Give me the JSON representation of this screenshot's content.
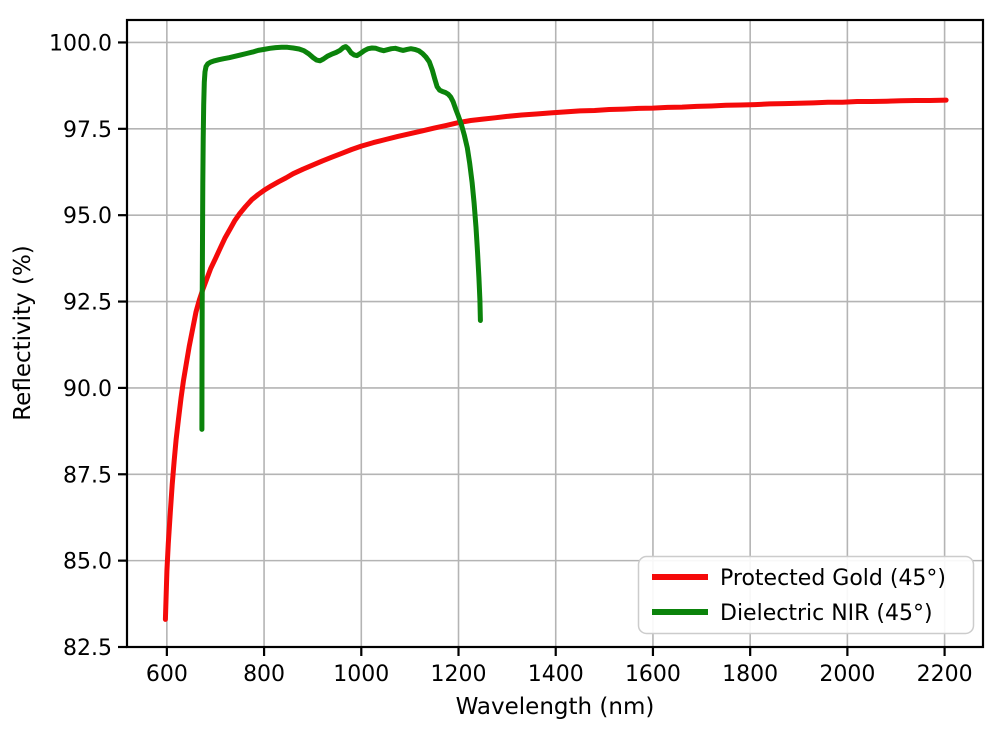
{
  "chart_data": {
    "type": "line",
    "title": "",
    "xlabel": "Wavelength (nm)",
    "ylabel": "Reflectivity (%)",
    "xlim": [
      518,
      2279
    ],
    "ylim": [
      82.5,
      100.65
    ],
    "grid": true,
    "grid_color": "#b4b4b4",
    "background_color": "#ffffff",
    "spine_color": "#000000",
    "x_ticks": [
      600,
      800,
      1000,
      1200,
      1400,
      1600,
      1800,
      2000,
      2200
    ],
    "x_tick_labels": [
      "600",
      "800",
      "1000",
      "1200",
      "1400",
      "1600",
      "1800",
      "2000",
      "2200"
    ],
    "y_ticks": [
      82.5,
      85.0,
      87.5,
      90.0,
      92.5,
      95.0,
      97.5,
      100.0
    ],
    "y_tick_labels": [
      "82.5",
      "85.0",
      "87.5",
      "90.0",
      "92.5",
      "95.0",
      "97.5",
      "100.0"
    ],
    "legend": {
      "location": "lower right",
      "entries": [
        "Protected Gold (45°)",
        "Dielectric NIR (45°)"
      ]
    },
    "series": [
      {
        "name": "Protected Gold (45°)",
        "color": "#f50a0a",
        "linewidth": 5,
        "points": [
          [
            597,
            83.3
          ],
          [
            600,
            84.7
          ],
          [
            603,
            85.5
          ],
          [
            607,
            86.4
          ],
          [
            611,
            87.2
          ],
          [
            615,
            87.9
          ],
          [
            619,
            88.5
          ],
          [
            624,
            89.1
          ],
          [
            629,
            89.7
          ],
          [
            634,
            90.2
          ],
          [
            640,
            90.7
          ],
          [
            646,
            91.2
          ],
          [
            653,
            91.7
          ],
          [
            660,
            92.2
          ],
          [
            667,
            92.55
          ],
          [
            674,
            92.85
          ],
          [
            682,
            93.15
          ],
          [
            690,
            93.45
          ],
          [
            700,
            93.75
          ],
          [
            710,
            94.05
          ],
          [
            720,
            94.35
          ],
          [
            730,
            94.6
          ],
          [
            740,
            94.85
          ],
          [
            750,
            95.05
          ],
          [
            762,
            95.25
          ],
          [
            775,
            95.45
          ],
          [
            788,
            95.6
          ],
          [
            800,
            95.72
          ],
          [
            815,
            95.85
          ],
          [
            830,
            95.97
          ],
          [
            845,
            96.08
          ],
          [
            860,
            96.2
          ],
          [
            880,
            96.33
          ],
          [
            900,
            96.45
          ],
          [
            920,
            96.57
          ],
          [
            940,
            96.68
          ],
          [
            960,
            96.79
          ],
          [
            980,
            96.9
          ],
          [
            1000,
            97.0
          ],
          [
            1025,
            97.1
          ],
          [
            1050,
            97.19
          ],
          [
            1075,
            97.28
          ],
          [
            1100,
            97.36
          ],
          [
            1125,
            97.44
          ],
          [
            1150,
            97.52
          ],
          [
            1175,
            97.6
          ],
          [
            1200,
            97.68
          ],
          [
            1225,
            97.74
          ],
          [
            1250,
            97.78
          ],
          [
            1275,
            97.82
          ],
          [
            1300,
            97.86
          ],
          [
            1330,
            97.9
          ],
          [
            1360,
            97.93
          ],
          [
            1390,
            97.96
          ],
          [
            1420,
            97.99
          ],
          [
            1450,
            98.02
          ],
          [
            1480,
            98.03
          ],
          [
            1510,
            98.06
          ],
          [
            1540,
            98.07
          ],
          [
            1570,
            98.09
          ],
          [
            1600,
            98.1
          ],
          [
            1630,
            98.12
          ],
          [
            1660,
            98.13
          ],
          [
            1690,
            98.15
          ],
          [
            1720,
            98.16
          ],
          [
            1750,
            98.18
          ],
          [
            1780,
            98.19
          ],
          [
            1810,
            98.2
          ],
          [
            1840,
            98.22
          ],
          [
            1870,
            98.23
          ],
          [
            1900,
            98.24
          ],
          [
            1930,
            98.25
          ],
          [
            1960,
            98.27
          ],
          [
            1990,
            98.27
          ],
          [
            2020,
            98.29
          ],
          [
            2050,
            98.29
          ],
          [
            2080,
            98.3
          ],
          [
            2110,
            98.31
          ],
          [
            2140,
            98.32
          ],
          [
            2170,
            98.32
          ],
          [
            2203,
            98.33
          ]
        ]
      },
      {
        "name": "Dielectric NIR (45°)",
        "color": "#0b830b",
        "linewidth": 5,
        "points": [
          [
            672,
            88.8
          ],
          [
            672.3,
            90.5
          ],
          [
            672.8,
            92.5
          ],
          [
            673.3,
            94.3
          ],
          [
            674,
            95.9
          ],
          [
            674.8,
            97.2
          ],
          [
            675.8,
            98.2
          ],
          [
            677,
            98.85
          ],
          [
            678.5,
            99.15
          ],
          [
            680.5,
            99.3
          ],
          [
            684,
            99.38
          ],
          [
            690,
            99.43
          ],
          [
            698,
            99.47
          ],
          [
            707,
            99.5
          ],
          [
            717,
            99.53
          ],
          [
            728,
            99.56
          ],
          [
            740,
            99.6
          ],
          [
            752,
            99.64
          ],
          [
            764,
            99.68
          ],
          [
            776,
            99.72
          ],
          [
            788,
            99.77
          ],
          [
            800,
            99.8
          ],
          [
            812,
            99.83
          ],
          [
            824,
            99.85
          ],
          [
            836,
            99.86
          ],
          [
            848,
            99.86
          ],
          [
            860,
            99.84
          ],
          [
            872,
            99.81
          ],
          [
            882,
            99.76
          ],
          [
            892,
            99.67
          ],
          [
            901,
            99.56
          ],
          [
            908,
            99.49
          ],
          [
            915,
            99.47
          ],
          [
            922,
            99.52
          ],
          [
            930,
            99.6
          ],
          [
            939,
            99.66
          ],
          [
            948,
            99.71
          ],
          [
            956,
            99.77
          ],
          [
            963,
            99.85
          ],
          [
            968,
            99.88
          ],
          [
            973,
            99.82
          ],
          [
            979,
            99.7
          ],
          [
            985,
            99.64
          ],
          [
            991,
            99.62
          ],
          [
            998,
            99.68
          ],
          [
            1006,
            99.76
          ],
          [
            1014,
            99.82
          ],
          [
            1022,
            99.84
          ],
          [
            1030,
            99.83
          ],
          [
            1038,
            99.79
          ],
          [
            1046,
            99.76
          ],
          [
            1054,
            99.79
          ],
          [
            1062,
            99.82
          ],
          [
            1070,
            99.83
          ],
          [
            1078,
            99.8
          ],
          [
            1086,
            99.77
          ],
          [
            1094,
            99.8
          ],
          [
            1102,
            99.82
          ],
          [
            1110,
            99.8
          ],
          [
            1118,
            99.76
          ],
          [
            1126,
            99.68
          ],
          [
            1133,
            99.58
          ],
          [
            1140,
            99.44
          ],
          [
            1146,
            99.2
          ],
          [
            1151,
            98.95
          ],
          [
            1156,
            98.72
          ],
          [
            1161,
            98.62
          ],
          [
            1167,
            98.58
          ],
          [
            1173,
            98.55
          ],
          [
            1179,
            98.5
          ],
          [
            1184,
            98.42
          ],
          [
            1189,
            98.28
          ],
          [
            1194,
            98.08
          ],
          [
            1200,
            97.86
          ],
          [
            1206,
            97.62
          ],
          [
            1212,
            97.32
          ],
          [
            1218,
            96.95
          ],
          [
            1223,
            96.5
          ],
          [
            1228,
            95.95
          ],
          [
            1232,
            95.35
          ],
          [
            1236,
            94.65
          ],
          [
            1239,
            93.95
          ],
          [
            1242,
            93.2
          ],
          [
            1244,
            92.55
          ],
          [
            1245,
            91.95
          ]
        ]
      }
    ]
  }
}
